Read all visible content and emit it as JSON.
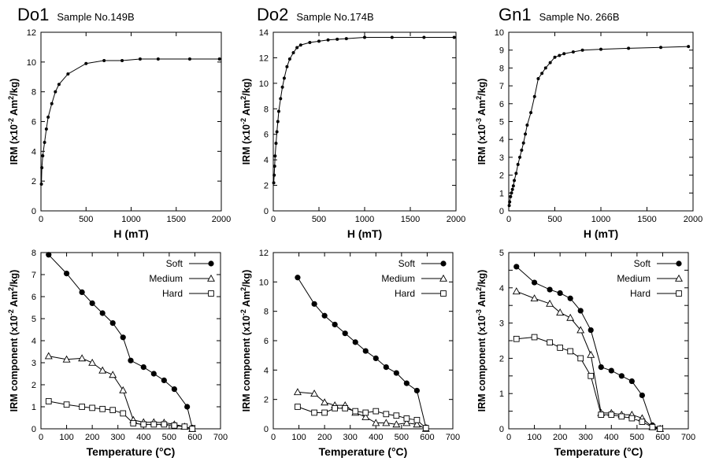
{
  "chart_data": [
    {
      "type": "line",
      "title": "Do1",
      "subtitle": "Sample No.149B",
      "xlabel": "H (mT)",
      "ylabel": "IRM (x10^-2 Am^2/kg)",
      "xlim": [
        0,
        2000
      ],
      "ylim": [
        0,
        12
      ],
      "xticks": [
        0,
        500,
        1000,
        1500,
        2000
      ],
      "yticks": [
        0,
        2,
        4,
        6,
        8,
        10,
        12
      ],
      "series": [
        {
          "marker": "dot-small",
          "x": [
            5,
            10,
            20,
            40,
            60,
            80,
            120,
            160,
            200,
            300,
            500,
            700,
            900,
            1100,
            1300,
            1650,
            1980
          ],
          "y": [
            1.8,
            2.9,
            3.7,
            4.6,
            5.5,
            6.3,
            7.2,
            8.0,
            8.5,
            9.2,
            9.9,
            10.1,
            10.1,
            10.2,
            10.2,
            10.2,
            10.2
          ]
        }
      ]
    },
    {
      "type": "line",
      "title": "Do2",
      "subtitle": "Sample No.174B",
      "xlabel": "H (mT)",
      "ylabel": "IRM (x10^-2 Am^2/kg)",
      "xlim": [
        0,
        2000
      ],
      "ylim": [
        0,
        14
      ],
      "xticks": [
        0,
        500,
        1000,
        1500,
        2000
      ],
      "yticks": [
        0,
        2,
        4,
        6,
        8,
        10,
        12,
        14
      ],
      "series": [
        {
          "marker": "dot-small",
          "x": [
            5,
            10,
            15,
            20,
            30,
            40,
            50,
            60,
            80,
            100,
            120,
            150,
            180,
            220,
            260,
            300,
            400,
            500,
            600,
            700,
            800,
            1000,
            1300,
            1650,
            1980
          ],
          "y": [
            2.2,
            2.8,
            3.5,
            4.3,
            5.3,
            6.2,
            7.0,
            7.8,
            8.8,
            9.7,
            10.4,
            11.3,
            11.9,
            12.4,
            12.8,
            13.0,
            13.2,
            13.3,
            13.4,
            13.45,
            13.5,
            13.6,
            13.6,
            13.6,
            13.6
          ]
        }
      ]
    },
    {
      "type": "line",
      "title": "Gn1",
      "subtitle": "Sample No. 266B",
      "xlabel": "H (mT)",
      "ylabel": "IRM (x10^-3 Am^2/kg)",
      "xlim": [
        0,
        2000
      ],
      "ylim": [
        0,
        10
      ],
      "xticks": [
        0,
        500,
        1000,
        1500,
        2000
      ],
      "yticks": [
        0,
        1,
        2,
        3,
        4,
        5,
        6,
        7,
        8,
        9,
        10
      ],
      "series": [
        {
          "marker": "dot-small",
          "x": [
            5,
            10,
            20,
            30,
            40,
            50,
            60,
            80,
            100,
            120,
            140,
            160,
            180,
            200,
            240,
            280,
            320,
            360,
            400,
            450,
            500,
            550,
            600,
            700,
            800,
            1000,
            1300,
            1650,
            1950
          ],
          "y": [
            0.3,
            0.5,
            0.8,
            1.0,
            1.2,
            1.4,
            1.7,
            2.1,
            2.6,
            3.0,
            3.4,
            3.8,
            4.3,
            4.8,
            5.5,
            6.4,
            7.4,
            7.7,
            8.0,
            8.3,
            8.6,
            8.7,
            8.8,
            8.9,
            9.0,
            9.05,
            9.1,
            9.15,
            9.2
          ]
        }
      ]
    },
    {
      "type": "line",
      "xlabel": "Temperature (°C)",
      "ylabel": "IRM component (x10^-2 Am^2/kg)",
      "xlim": [
        0,
        700
      ],
      "ylim": [
        0,
        8
      ],
      "xticks": [
        0,
        100,
        200,
        300,
        400,
        500,
        600,
        700
      ],
      "yticks": [
        0,
        1,
        2,
        3,
        4,
        5,
        6,
        7,
        8
      ],
      "legend": [
        "Soft",
        "Medium",
        "Hard"
      ],
      "legend_position": "top-right",
      "series": [
        {
          "name": "Soft",
          "marker": "filled-circle",
          "x": [
            30,
            100,
            160,
            200,
            240,
            280,
            320,
            350,
            400,
            440,
            480,
            520,
            570,
            590
          ],
          "y": [
            7.9,
            7.05,
            6.2,
            5.7,
            5.25,
            4.8,
            4.15,
            3.1,
            2.8,
            2.5,
            2.2,
            1.8,
            1.0,
            0.05
          ]
        },
        {
          "name": "Medium",
          "marker": "open-triangle",
          "x": [
            30,
            100,
            160,
            200,
            240,
            280,
            320,
            360,
            400,
            440,
            480,
            520,
            560,
            590
          ],
          "y": [
            3.3,
            3.15,
            3.2,
            3.0,
            2.65,
            2.45,
            1.75,
            0.4,
            0.3,
            0.3,
            0.28,
            0.2,
            0.1,
            0.0
          ]
        },
        {
          "name": "Hard",
          "marker": "open-square",
          "x": [
            30,
            100,
            160,
            200,
            240,
            280,
            320,
            360,
            400,
            440,
            480,
            520,
            560,
            590
          ],
          "y": [
            1.25,
            1.1,
            1.0,
            0.95,
            0.9,
            0.85,
            0.7,
            0.25,
            0.2,
            0.2,
            0.2,
            0.15,
            0.1,
            0.0
          ]
        }
      ]
    },
    {
      "type": "line",
      "xlabel": "Temperature (°C)",
      "ylabel": "IRM component (x10^-2 Am^2/kg)",
      "xlim": [
        0,
        700
      ],
      "ylim": [
        0,
        12
      ],
      "xticks": [
        0,
        100,
        200,
        300,
        400,
        500,
        600,
        700
      ],
      "yticks": [
        0,
        2,
        4,
        6,
        8,
        10,
        12
      ],
      "legend": [
        "Soft",
        "Medium",
        "Hard"
      ],
      "legend_position": "top-right",
      "series": [
        {
          "name": "Soft",
          "marker": "filled-circle",
          "x": [
            95,
            160,
            200,
            240,
            280,
            320,
            360,
            400,
            440,
            480,
            520,
            560,
            595
          ],
          "y": [
            10.3,
            8.5,
            7.7,
            7.1,
            6.5,
            5.9,
            5.3,
            4.8,
            4.2,
            3.8,
            3.1,
            2.6,
            0.1
          ]
        },
        {
          "name": "Medium",
          "marker": "open-triangle",
          "x": [
            95,
            160,
            200,
            240,
            280,
            320,
            360,
            400,
            440,
            480,
            520,
            560,
            595
          ],
          "y": [
            2.5,
            2.4,
            1.8,
            1.6,
            1.6,
            1.1,
            0.8,
            0.4,
            0.4,
            0.3,
            0.4,
            0.3,
            0.0
          ]
        },
        {
          "name": "Hard",
          "marker": "open-square",
          "x": [
            95,
            160,
            200,
            240,
            280,
            320,
            360,
            400,
            440,
            480,
            520,
            560,
            595
          ],
          "y": [
            1.5,
            1.1,
            1.1,
            1.4,
            1.4,
            1.2,
            1.1,
            1.2,
            1.0,
            0.9,
            0.7,
            0.6,
            0.05
          ]
        }
      ]
    },
    {
      "type": "line",
      "xlabel": "Temperature (°C)",
      "ylabel": "IRM component (x10^-3 Am^2/kg)",
      "xlim": [
        0,
        700
      ],
      "ylim": [
        0,
        5
      ],
      "xticks": [
        0,
        100,
        200,
        300,
        400,
        500,
        600,
        700
      ],
      "yticks": [
        0,
        0.5,
        1,
        1.5,
        2,
        2.5,
        3,
        3.5,
        4,
        4.5,
        5
      ],
      "ytick_labels": [
        "0",
        "",
        "1",
        "",
        "2",
        "",
        "3",
        "",
        "4",
        "",
        "5"
      ],
      "legend": [
        "Soft",
        "Medium",
        "Hard"
      ],
      "legend_position": "top-right",
      "series": [
        {
          "name": "Soft",
          "marker": "filled-circle",
          "x": [
            30,
            100,
            160,
            200,
            240,
            280,
            320,
            360,
            400,
            440,
            480,
            520,
            560,
            590
          ],
          "y": [
            4.6,
            4.15,
            3.95,
            3.85,
            3.7,
            3.35,
            2.8,
            1.75,
            1.65,
            1.5,
            1.35,
            0.95,
            0.1,
            0.0
          ]
        },
        {
          "name": "Medium",
          "marker": "open-triangle",
          "x": [
            30,
            100,
            160,
            200,
            240,
            280,
            320,
            360,
            400,
            440,
            480,
            520,
            560,
            590
          ],
          "y": [
            3.9,
            3.7,
            3.55,
            3.3,
            3.15,
            2.8,
            2.1,
            0.45,
            0.45,
            0.4,
            0.4,
            0.3,
            0.05,
            0.0
          ]
        },
        {
          "name": "Hard",
          "marker": "open-square",
          "x": [
            30,
            100,
            160,
            200,
            240,
            280,
            320,
            360,
            400,
            440,
            480,
            520,
            560,
            590
          ],
          "y": [
            2.55,
            2.6,
            2.45,
            2.3,
            2.2,
            2.0,
            1.5,
            0.4,
            0.4,
            0.35,
            0.3,
            0.2,
            0.05,
            0.0
          ]
        }
      ]
    }
  ]
}
